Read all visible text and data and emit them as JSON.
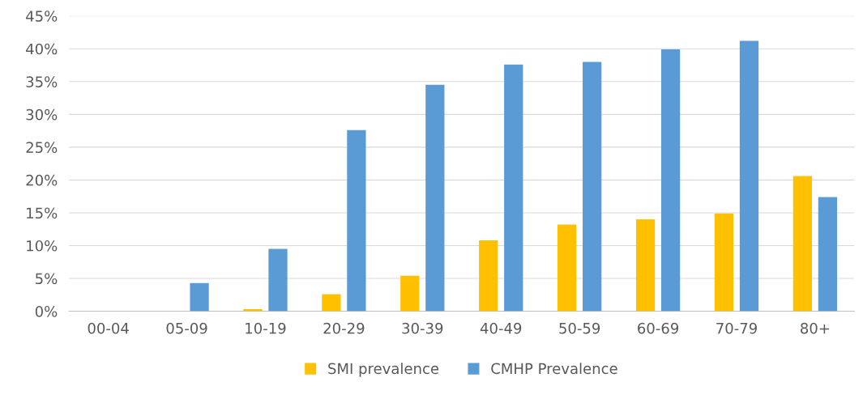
{
  "chart_data": {
    "type": "bar",
    "categories": [
      "00-04",
      "05-09",
      "10-19",
      "20-29",
      "30-39",
      "40-49",
      "50-59",
      "60-69",
      "70-79",
      "80+"
    ],
    "series": [
      {
        "name": "SMI prevalence",
        "color": "#ffc000",
        "values": [
          0,
          0,
          0.3,
          2.6,
          5.4,
          10.8,
          13.2,
          14.0,
          14.9,
          20.6
        ]
      },
      {
        "name": "CMHP Prevalence",
        "color": "#5b9bd5",
        "values": [
          0,
          4.3,
          9.5,
          27.6,
          34.5,
          37.6,
          38.0,
          39.9,
          41.2,
          17.4
        ]
      }
    ],
    "ylim": [
      0,
      45
    ],
    "yticks": [
      {
        "value": 0,
        "label": "0%"
      },
      {
        "value": 5,
        "label": "5%"
      },
      {
        "value": 10,
        "label": "10%"
      },
      {
        "value": 15,
        "label": "15%"
      },
      {
        "value": 20,
        "label": "20%"
      },
      {
        "value": 25,
        "label": "25%"
      },
      {
        "value": 30,
        "label": "30%"
      },
      {
        "value": 35,
        "label": "35%"
      },
      {
        "value": 40,
        "label": "40%"
      },
      {
        "value": 45,
        "label": "45%"
      }
    ],
    "grid": "y",
    "legend": "bottom"
  }
}
